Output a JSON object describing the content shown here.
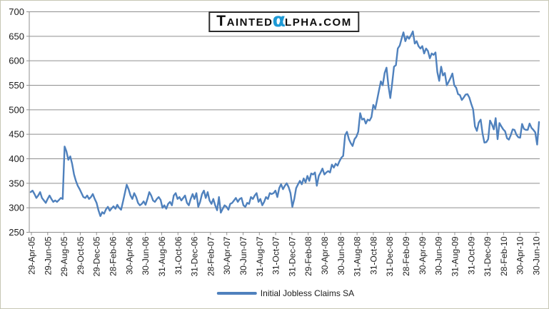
{
  "page": {
    "background_color": "#ffffff",
    "border_color": "#c6c6b4"
  },
  "logo": {
    "prefix": "Tainted",
    "alpha_char": "α",
    "suffix": "lpha.com",
    "alpha_color": "#1e9ad6"
  },
  "legend": {
    "label": "Initial Jobless Claims SA"
  },
  "chart_data": {
    "type": "line",
    "title": "",
    "xlabel": "",
    "ylabel": "",
    "ylim": [
      250,
      700
    ],
    "y_ticks": [
      250,
      300,
      350,
      400,
      450,
      500,
      550,
      600,
      650,
      700
    ],
    "grid": "horizontal",
    "grid_color": "#8f8f8f",
    "axis_text_color": "#1c1c1c",
    "legend_position": "bottom-center",
    "x_unit": "weekly (Apr-2005 to Jul-2010)",
    "x_tick_labels": [
      "29-Apr-05",
      "29-Jun-05",
      "29-Aug-05",
      "29-Oct-05",
      "29-Dec-05",
      "28-Feb-06",
      "30-Apr-06",
      "30-Jun-06",
      "31-Aug-06",
      "31-Oct-06",
      "31-Dec-06",
      "28-Feb-07",
      "30-Apr-07",
      "30-Jun-07",
      "31-Aug-07",
      "31-Oct-07",
      "31-Dec-07",
      "29-Feb-08",
      "30-Apr-08",
      "30-Jun-08",
      "31-Aug-08",
      "31-Oct-08",
      "31-Dec-08",
      "28-Feb-09",
      "30-Apr-09",
      "30-Jun-09",
      "31-Aug-09",
      "31-Oct-09",
      "31-Dec-09",
      "28-Feb-10",
      "30-Apr-10",
      "30-Jun-10"
    ],
    "series": [
      {
        "name": "Initial Jobless Claims SA",
        "color": "#4F81BD",
        "values": [
          332,
          335,
          328,
          320,
          325,
          332,
          320,
          315,
          310,
          318,
          325,
          318,
          312,
          315,
          312,
          316,
          320,
          318,
          425,
          415,
          398,
          405,
          390,
          368,
          355,
          345,
          338,
          330,
          322,
          320,
          325,
          318,
          322,
          328,
          318,
          310,
          295,
          283,
          291,
          288,
          297,
          302,
          294,
          299,
          303,
          298,
          306,
          300,
          296,
          312,
          330,
          347,
          338,
          325,
          318,
          330,
          322,
          310,
          305,
          308,
          313,
          306,
          318,
          332,
          325,
          315,
          312,
          318,
          322,
          316,
          300,
          305,
          298,
          308,
          312,
          305,
          325,
          330,
          318,
          322,
          315,
          320,
          325,
          310,
          305,
          318,
          328,
          318,
          330,
          302,
          312,
          328,
          335,
          320,
          332,
          315,
          308,
          318,
          305,
          295,
          322,
          290,
          298,
          305,
          302,
          296,
          308,
          310,
          315,
          320,
          312,
          318,
          320,
          305,
          302,
          310,
          308,
          322,
          318,
          325,
          330,
          312,
          318,
          305,
          312,
          322,
          318,
          330,
          328,
          330,
          335,
          322,
          340,
          348,
          338,
          345,
          350,
          342,
          330,
          302,
          318,
          340,
          348,
          355,
          348,
          360,
          352,
          365,
          355,
          370,
          368,
          372,
          345,
          365,
          372,
          380,
          368,
          372,
          375,
          372,
          388,
          382,
          390,
          386,
          395,
          402,
          406,
          448,
          455,
          440,
          432,
          426,
          440,
          445,
          455,
          493,
          480,
          482,
          472,
          480,
          478,
          485,
          510,
          502,
          520,
          540,
          558,
          550,
          575,
          586,
          550,
          524,
          554,
          588,
          591,
          625,
          631,
          645,
          658,
          640,
          650,
          645,
          652,
          660,
          635,
          640,
          630,
          625,
          630,
          615,
          625,
          620,
          605,
          615,
          612,
          617,
          577,
          559,
          588,
          570,
          575,
          550,
          557,
          565,
          574,
          550,
          545,
          532,
          530,
          520,
          525,
          531,
          532,
          525,
          512,
          501,
          466,
          457,
          474,
          480,
          452,
          433,
          434,
          440,
          478,
          470,
          460,
          483,
          440,
          473,
          466,
          460,
          456,
          442,
          439,
          448,
          460,
          459,
          449,
          444,
          443,
          471,
          461,
          459,
          459,
          472,
          463,
          459,
          454,
          429,
          475
        ]
      }
    ]
  }
}
